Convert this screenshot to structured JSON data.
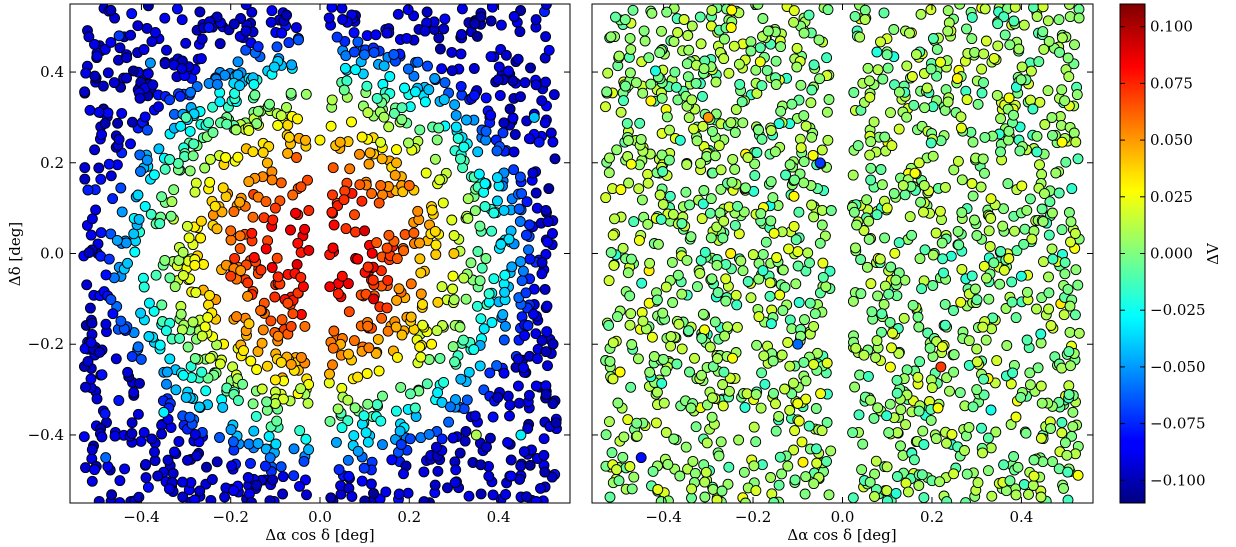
{
  "chart_data": [
    {
      "type": "scatter",
      "panel": "left",
      "title": "",
      "xlabel": "Δα cos δ [deg]",
      "ylabel": "Δδ [deg]",
      "xlim": [
        -0.56,
        0.56
      ],
      "ylim": [
        -0.55,
        0.55
      ],
      "xticks": [
        -0.4,
        -0.2,
        0.0,
        0.2,
        0.4
      ],
      "xtick_labels": [
        "−0.4",
        "−0.2",
        "0.0",
        "0.2",
        "0.4"
      ],
      "yticks": [
        -0.4,
        -0.2,
        0.0,
        0.2,
        0.4
      ],
      "ytick_labels": [
        "−0.4",
        "−0.2",
        "0.0",
        "0.2",
        "0.4"
      ],
      "color_variable": "ΔV",
      "pattern": "radial gradient: ΔV high (~0.06 to 0.09) near center (|x|<0.25, |y|<0.2), decreasing to ~ -0.06 at corners; empty vertical gap near x = -0.02 to 0.02",
      "n_points_approx": 1700,
      "gap_x": [
        -0.025,
        0.02
      ],
      "x": [
        -0.45,
        -0.38,
        -0.3,
        -0.2,
        -0.1,
        0.05,
        0.12,
        0.2,
        0.3,
        0.45,
        -0.2,
        -0.15,
        0.1,
        0.15,
        0.25,
        -0.48,
        0.48,
        -0.35,
        0.35,
        0.0
      ],
      "y": [
        0.48,
        0.42,
        0.3,
        0.05,
        0.1,
        -0.05,
        -0.1,
        0.15,
        0.0,
        -0.4,
        -0.05,
        0.08,
        0.05,
        -0.12,
        -0.2,
        -0.45,
        0.3,
        -0.35,
        -0.4,
        0.25
      ],
      "color_values": [
        -0.07,
        -0.05,
        -0.01,
        0.06,
        0.07,
        0.08,
        0.09,
        0.06,
        0.04,
        -0.03,
        0.07,
        0.06,
        0.09,
        0.07,
        0.03,
        -0.06,
        -0.04,
        -0.03,
        0.01,
        0.03
      ]
    },
    {
      "type": "scatter",
      "panel": "right",
      "title": "",
      "xlabel": "Δα cos δ [deg]",
      "ylabel": "",
      "xlim": [
        -0.56,
        0.56
      ],
      "ylim": [
        -0.55,
        0.55
      ],
      "xticks": [
        -0.4,
        -0.2,
        0.0,
        0.2,
        0.4
      ],
      "xtick_labels": [
        "−0.4",
        "−0.2",
        "0.0",
        "0.2",
        "0.4"
      ],
      "yticks": [
        -0.4,
        -0.2,
        0.0,
        0.2,
        0.4
      ],
      "ytick_labels": [],
      "color_variable": "ΔV",
      "pattern": "residuals roughly uniform, ΔV mostly ~ -0.02 to 0.03 with scattered outliers; empty vertical gap near x = -0.02 to 0.02",
      "n_points_approx": 1700,
      "gap_x": [
        -0.025,
        0.02
      ],
      "x": [
        -0.3,
        -0.1,
        0.1,
        0.3,
        -0.45,
        0.45,
        -0.25,
        0.22,
        0.4,
        -0.05
      ],
      "y": [
        0.3,
        -0.2,
        0.1,
        -0.3,
        -0.45,
        0.45,
        0.0,
        -0.25,
        -0.05,
        0.2
      ],
      "color_values": [
        0.05,
        -0.06,
        0.02,
        0.0,
        -0.08,
        0.01,
        0.03,
        0.07,
        -0.02,
        -0.07
      ]
    }
  ],
  "colorbar": {
    "label": "ΔV",
    "colormap": "jet",
    "range": [
      -0.11,
      0.11
    ],
    "ticks": [
      0.1,
      0.075,
      0.05,
      0.025,
      0.0,
      -0.025,
      -0.05,
      -0.075,
      -0.1
    ],
    "tick_labels": [
      "0.100",
      "0.075",
      "0.050",
      "0.025",
      "0.000",
      "−0.025",
      "−0.050",
      "−0.075",
      "−0.100"
    ]
  }
}
